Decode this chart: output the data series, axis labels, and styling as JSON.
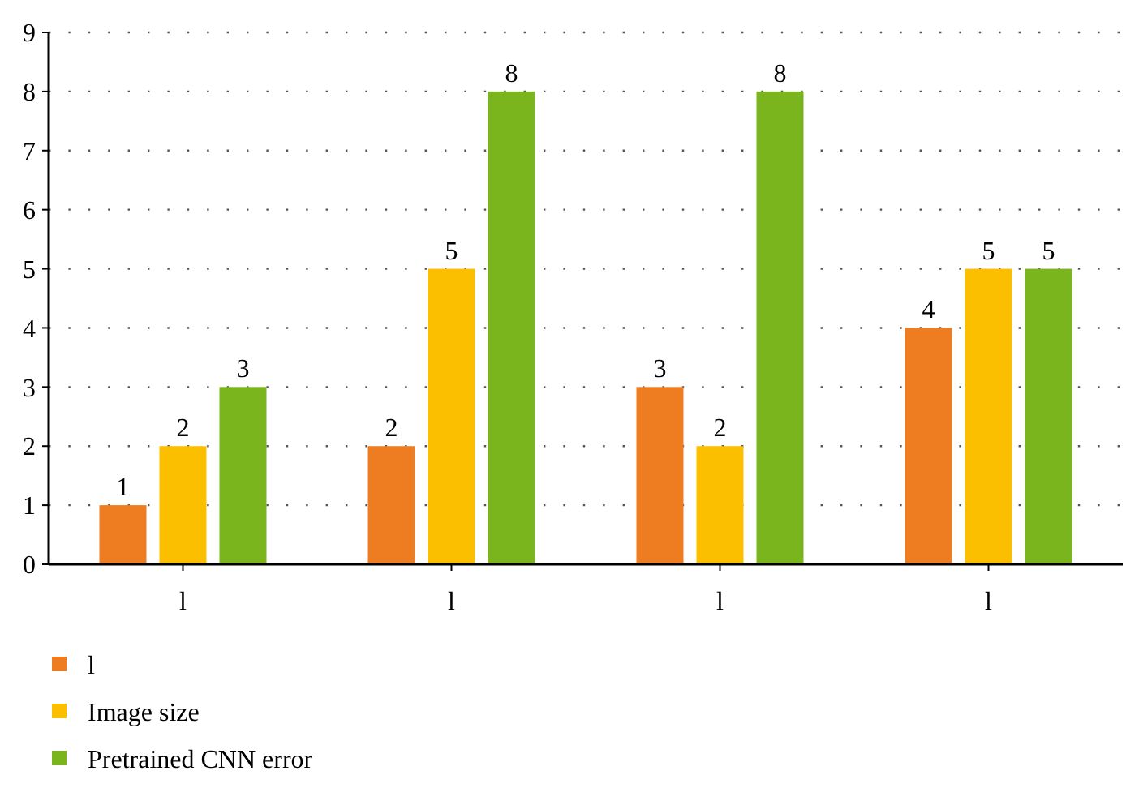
{
  "chart_data": {
    "type": "bar",
    "categories": [
      "l",
      "l",
      "l",
      "l"
    ],
    "series": [
      {
        "name": "l",
        "color": "#ee7d22",
        "values": [
          1,
          2,
          3,
          4
        ]
      },
      {
        "name": "Image size",
        "color": "#fbbf00",
        "values": [
          2,
          5,
          2,
          5
        ]
      },
      {
        "name": "Pretrained CNN error",
        "color": "#7ab51d",
        "values": [
          3,
          8,
          8,
          5
        ]
      }
    ],
    "ylim": [
      0,
      9
    ],
    "yticks": [
      0,
      1,
      2,
      3,
      4,
      5,
      6,
      7,
      8,
      9
    ],
    "grid": "y",
    "legend": "bottom left",
    "data_labels": true
  }
}
